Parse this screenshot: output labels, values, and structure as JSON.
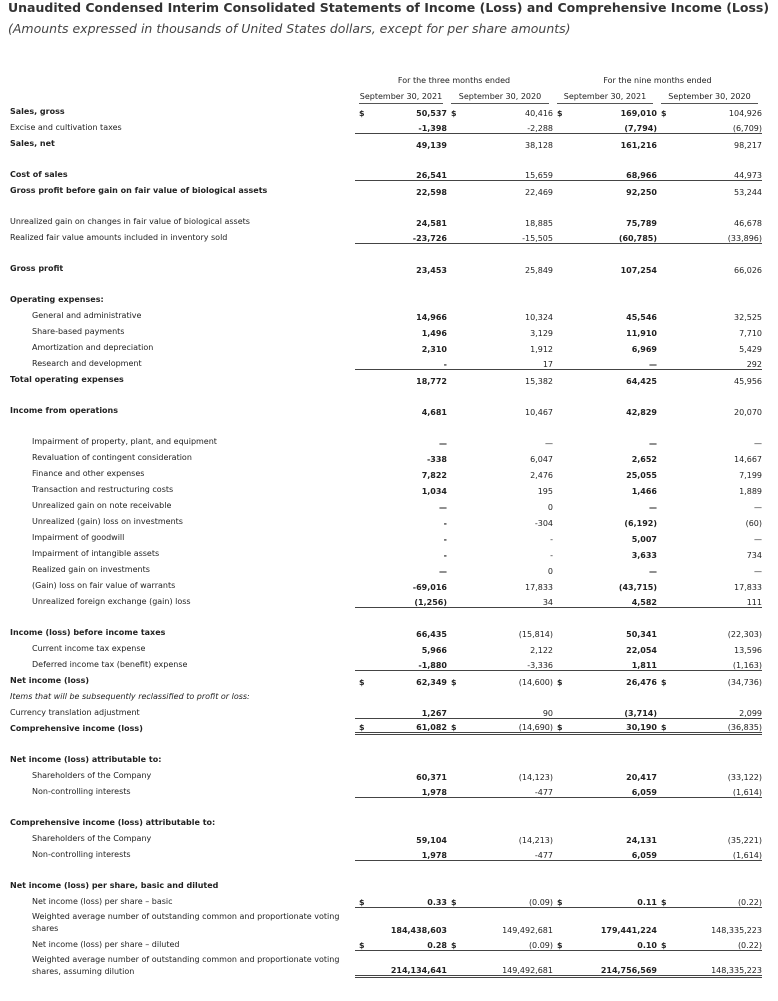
{
  "header": {
    "title": "Unaudited Condensed Interim Consolidated Statements of Income (Loss) and Comprehensive Income (Loss)",
    "subtitle": "(Amounts expressed in thousands of United States dollars, except for per share amounts)"
  },
  "table": {
    "group_headers": [
      "For the three months ended",
      "For the nine months ended"
    ],
    "column_headers": [
      "September 30, 2021",
      "September 30, 2020",
      "September 30, 2021",
      "September 30, 2020"
    ],
    "sections": [
      {
        "rows": [
          {
            "label": "Sales, gross",
            "bold": true,
            "currency": "$",
            "values": [
              "50,537",
              "40,416",
              "169,010",
              "104,926"
            ]
          },
          {
            "label": "Excise and cultivation taxes",
            "values": [
              "-1,398",
              "-2,288",
              "(7,794)",
              "(6,709)"
            ],
            "rule": "single"
          },
          {
            "label": "Sales, net",
            "bold": true,
            "values": [
              "49,139",
              "38,128",
              "161,216",
              "98,217"
            ]
          }
        ]
      },
      {
        "rows": [
          {
            "label": "Cost of sales",
            "bold": true,
            "values": [
              "26,541",
              "15,659",
              "68,966",
              "44,973"
            ],
            "rule": "single"
          },
          {
            "label": "Gross profit before gain on fair value of biological assets",
            "bold": true,
            "values": [
              "22,598",
              "22,469",
              "92,250",
              "53,244"
            ]
          }
        ]
      },
      {
        "rows": [
          {
            "label": "Unrealized gain on changes in fair value of biological assets",
            "values": [
              "24,581",
              "18,885",
              "75,789",
              "46,678"
            ]
          },
          {
            "label": "Realized fair value amounts included in inventory sold",
            "values": [
              "-23,726",
              "-15,505",
              "(60,785)",
              "(33,896)"
            ],
            "rule": "single"
          }
        ]
      },
      {
        "rows": [
          {
            "label": "Gross profit",
            "bold": true,
            "values": [
              "23,453",
              "25,849",
              "107,254",
              "66,026"
            ]
          }
        ]
      },
      {
        "rows": [
          {
            "label": "Operating expenses:",
            "bold": true
          },
          {
            "label": "General and administrative",
            "indent": true,
            "values": [
              "14,966",
              "10,324",
              "45,546",
              "32,525"
            ]
          },
          {
            "label": "Share-based payments",
            "indent": true,
            "values": [
              "1,496",
              "3,129",
              "11,910",
              "7,710"
            ]
          },
          {
            "label": "Amortization and depreciation",
            "indent": true,
            "values": [
              "2,310",
              "1,912",
              "6,969",
              "5,429"
            ]
          },
          {
            "label": "Research and development",
            "indent": true,
            "values": [
              "-",
              "17",
              "—",
              "292"
            ],
            "rule": "single"
          },
          {
            "label": "Total operating expenses",
            "bold": true,
            "values": [
              "18,772",
              "15,382",
              "64,425",
              "45,956"
            ]
          }
        ]
      },
      {
        "rows": [
          {
            "label": "Income from operations",
            "bold": true,
            "values": [
              "4,681",
              "10,467",
              "42,829",
              "20,070"
            ]
          }
        ]
      },
      {
        "rows": [
          {
            "label": "Impairment of property, plant, and equipment",
            "indent": true,
            "values": [
              "—",
              "—",
              "—",
              "—"
            ]
          },
          {
            "label": "Revaluation of contingent consideration",
            "indent": true,
            "values": [
              "-338",
              "6,047",
              "2,652",
              "14,667"
            ]
          },
          {
            "label": "Finance and other expenses",
            "indent": true,
            "values": [
              "7,822",
              "2,476",
              "25,055",
              "7,199"
            ]
          },
          {
            "label": "Transaction and restructuring costs",
            "indent": true,
            "values": [
              "1,034",
              "195",
              "1,466",
              "1,889"
            ]
          },
          {
            "label": "Unrealized gain on note receivable",
            "indent": true,
            "values": [
              "—",
              "0",
              "—",
              "—"
            ]
          },
          {
            "label": "Unrealized (gain) loss on investments",
            "indent": true,
            "values": [
              "-",
              "-304",
              "(6,192)",
              "(60)"
            ]
          },
          {
            "label": "Impairment of goodwill",
            "indent": true,
            "values": [
              "-",
              "-",
              "5,007",
              "—"
            ]
          },
          {
            "label": "Impairment of intangible assets",
            "indent": true,
            "values": [
              "-",
              "-",
              "3,633",
              "734"
            ]
          },
          {
            "label": "Realized gain on investments",
            "indent": true,
            "values": [
              "—",
              "0",
              "—",
              "—"
            ]
          },
          {
            "label": "(Gain) loss on fair value of warrants",
            "indent": true,
            "values": [
              "-69,016",
              "17,833",
              "(43,715)",
              "17,833"
            ]
          },
          {
            "label": "Unrealized foreign exchange (gain) loss",
            "indent": true,
            "values": [
              "(1,256)",
              "34",
              "4,582",
              "111"
            ],
            "rule": "single"
          }
        ]
      },
      {
        "rows": [
          {
            "label": "Income (loss) before income taxes",
            "bold": true,
            "values": [
              "66,435",
              "(15,814)",
              "50,341",
              "(22,303)"
            ]
          },
          {
            "label": "Current income tax expense",
            "indent": true,
            "values": [
              "5,966",
              "2,122",
              "22,054",
              "13,596"
            ]
          },
          {
            "label": "Deferred income tax (benefit) expense",
            "indent": true,
            "values": [
              "-1,880",
              "-3,336",
              "1,811",
              "(1,163)"
            ],
            "rule": "single"
          },
          {
            "label": "Net income (loss)",
            "bold": true,
            "currency": "$",
            "values": [
              "62,349",
              "(14,600)",
              "26,476",
              "(34,736)"
            ]
          },
          {
            "label": "Items that will be subsequently reclassified to profit or loss:",
            "italic": true
          },
          {
            "label": "Currency translation adjustment",
            "values": [
              "1,267",
              "90",
              "(3,714)",
              "2,099"
            ],
            "rule": "single"
          },
          {
            "label": "Comprehensive income (loss)",
            "bold": true,
            "currency": "$",
            "values": [
              "61,082",
              "(14,690)",
              "30,190",
              "(36,835)"
            ],
            "rule": "double"
          }
        ]
      },
      {
        "rows": [
          {
            "label": "Net income (loss) attributable to:",
            "bold": true
          },
          {
            "label": "Shareholders of the Company",
            "indent": true,
            "values": [
              "60,371",
              "(14,123)",
              "20,417",
              "(33,122)"
            ]
          },
          {
            "label": "Non-controlling interests",
            "indent": true,
            "values": [
              "1,978",
              "-477",
              "6,059",
              "(1,614)"
            ],
            "rule": "single"
          }
        ]
      },
      {
        "rows": [
          {
            "label": "Comprehensive income (loss) attributable to:",
            "bold": true
          },
          {
            "label": "Shareholders of the Company",
            "indent": true,
            "values": [
              "59,104",
              "(14,213)",
              "24,131",
              "(35,221)"
            ]
          },
          {
            "label": "Non-controlling interests",
            "indent": true,
            "values": [
              "1,978",
              "-477",
              "6,059",
              "(1,614)"
            ],
            "rule": "single"
          }
        ]
      },
      {
        "rows": [
          {
            "label": "Net income (loss) per share, basic and diluted",
            "bold": true
          },
          {
            "label": "Net income (loss) per share – basic",
            "indent": true,
            "currency": "$",
            "values": [
              "0.33",
              "(0.09)",
              "0.11",
              "(0.22)"
            ],
            "rule": "single"
          },
          {
            "label": "Weighted average number of outstanding common and proportionate voting shares",
            "indent": true,
            "values": [
              "184,438,603",
              "149,492,681",
              "179,441,224",
              "148,335,223"
            ]
          },
          {
            "label": "Net income (loss) per share – diluted",
            "indent": true,
            "currency": "$",
            "values": [
              "0.28",
              "(0.09)",
              "0.10",
              "(0.22)"
            ],
            "rule": "single"
          },
          {
            "label": "Weighted average number of outstanding common and proportionate voting shares, assuming dilution",
            "indent": true,
            "values": [
              "214,134,641",
              "149,492,681",
              "214,756,569",
              "148,335,223"
            ],
            "rule": "double"
          }
        ]
      }
    ]
  }
}
